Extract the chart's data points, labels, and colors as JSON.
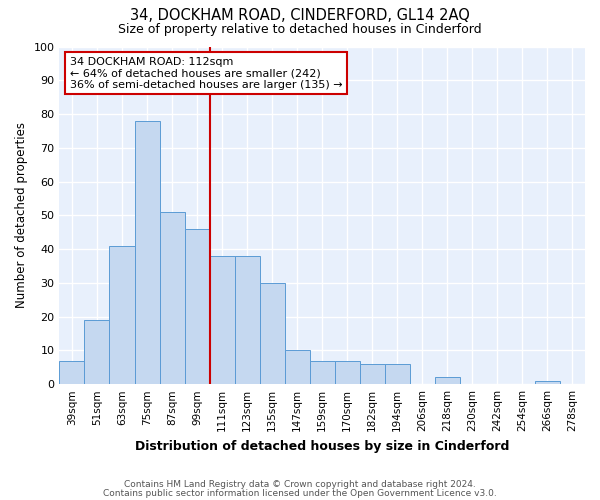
{
  "title": "34, DOCKHAM ROAD, CINDERFORD, GL14 2AQ",
  "subtitle": "Size of property relative to detached houses in Cinderford",
  "xlabel": "Distribution of detached houses by size in Cinderford",
  "ylabel": "Number of detached properties",
  "categories": [
    "39sqm",
    "51sqm",
    "63sqm",
    "75sqm",
    "87sqm",
    "99sqm",
    "111sqm",
    "123sqm",
    "135sqm",
    "147sqm",
    "159sqm",
    "170sqm",
    "182sqm",
    "194sqm",
    "206sqm",
    "218sqm",
    "230sqm",
    "242sqm",
    "254sqm",
    "266sqm",
    "278sqm"
  ],
  "values": [
    7,
    19,
    41,
    78,
    51,
    46,
    38,
    38,
    30,
    10,
    7,
    7,
    6,
    6,
    0,
    2,
    0,
    0,
    0,
    1,
    0
  ],
  "bar_color": "#c5d8f0",
  "bar_edge_color": "#5b9bd5",
  "background_color": "#e8f0fc",
  "grid_color": "#ffffff",
  "annotation_text_line1": "34 DOCKHAM ROAD: 112sqm",
  "annotation_text_line2": "← 64% of detached houses are smaller (242)",
  "annotation_text_line3": "36% of semi-detached houses are larger (135) →",
  "annotation_box_color": "#ffffff",
  "annotation_box_edge_color": "#cc0000",
  "vline_color": "#cc0000",
  "vline_bar_index": 6,
  "ylim": [
    0,
    100
  ],
  "yticks": [
    0,
    10,
    20,
    30,
    40,
    50,
    60,
    70,
    80,
    90,
    100
  ],
  "footnote1": "Contains HM Land Registry data © Crown copyright and database right 2024.",
  "footnote2": "Contains public sector information licensed under the Open Government Licence v3.0."
}
